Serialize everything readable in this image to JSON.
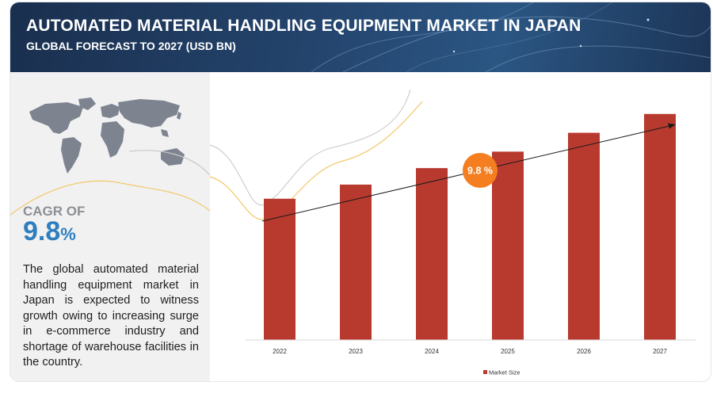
{
  "header": {
    "title": "AUTOMATED MATERIAL HANDLING EQUIPMENT MARKET IN JAPAN",
    "subtitle": "GLOBAL FORECAST TO 2027 (USD BN)"
  },
  "summary": {
    "cagr_label": "CAGR OF",
    "cagr_number": "9.8",
    "cagr_unit": "%",
    "description": "The global automated material handling equipment market in Japan is expected to witness growth owing to increasing surge in e-commerce industry and shortage of warehouse facilities in the country."
  },
  "chart_data": {
    "type": "bar",
    "categories": [
      "2022",
      "2023",
      "2024",
      "2025",
      "2026",
      "2027"
    ],
    "series": [
      {
        "name": "Market Size",
        "values": [
          6.0,
          6.6,
          7.3,
          8.0,
          8.8,
          9.6
        ]
      }
    ],
    "ylim": [
      0,
      10.3
    ],
    "bar_color": "#b83a2f",
    "legend_position": "bottom",
    "annotation": {
      "text": "9.8 %",
      "color": "#f47e20"
    },
    "grid": false
  },
  "colors": {
    "header_bg": "#1f3a5f",
    "panel_bg": "#f1f1f2",
    "accent_blue": "#2e7fc0",
    "bar": "#b83a2f",
    "badge": "#f47e20"
  },
  "icons": {
    "map": "world-map-icon"
  }
}
